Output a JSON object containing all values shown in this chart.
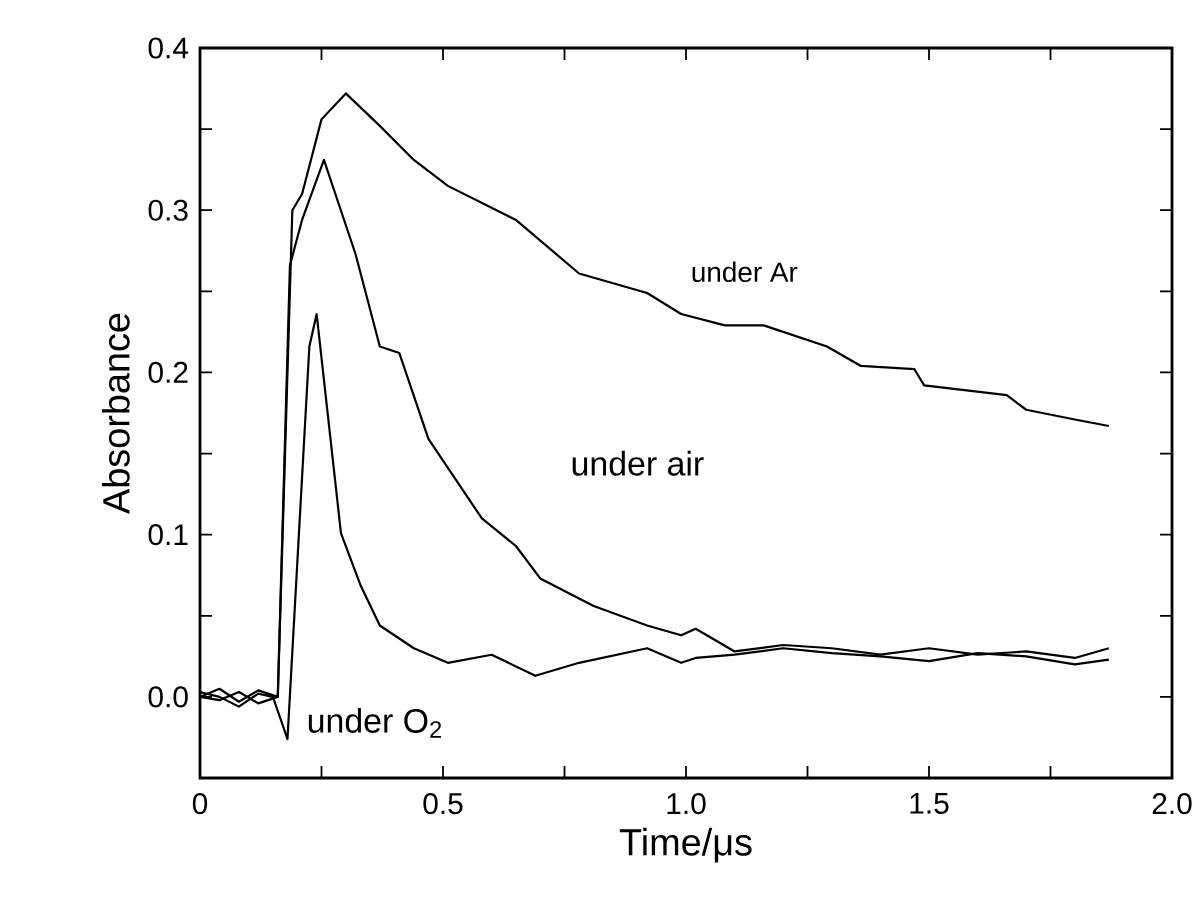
{
  "chart_data": {
    "type": "line",
    "xlabel": "Time/μs",
    "ylabel": "Absorbance",
    "xlim": [
      0,
      2.0
    ],
    "ylim": [
      -0.05,
      0.4
    ],
    "xticks": [
      {
        "value": 0,
        "label": "0"
      },
      {
        "value": 0.25,
        "label": null
      },
      {
        "value": 0.5,
        "label": "0.5"
      },
      {
        "value": 0.75,
        "label": null
      },
      {
        "value": 1.0,
        "label": "1.0"
      },
      {
        "value": 1.25,
        "label": null
      },
      {
        "value": 1.5,
        "label": "1.5"
      },
      {
        "value": 1.75,
        "label": null
      },
      {
        "value": 2.0,
        "label": "2.0"
      }
    ],
    "yticks": [
      {
        "value": 0,
        "label": "0.0"
      },
      {
        "value": 0.05,
        "label": null
      },
      {
        "value": 0.1,
        "label": "0.1"
      },
      {
        "value": 0.15,
        "label": null
      },
      {
        "value": 0.2,
        "label": "0.2"
      },
      {
        "value": 0.25,
        "label": null
      },
      {
        "value": 0.3,
        "label": "0.3"
      },
      {
        "value": 0.35,
        "label": null
      },
      {
        "value": 0.4,
        "label": "0.4"
      }
    ],
    "grid": false,
    "legend": false,
    "marker": "none",
    "line_style": "solid",
    "series": [
      {
        "name": "under Ar",
        "color": "#000000",
        "x": [
          0,
          0.04,
          0.08,
          0.12,
          0.16,
          0.19,
          0.21,
          0.25,
          0.3,
          0.37,
          0.44,
          0.51,
          0.65,
          0.78,
          0.92,
          0.99,
          1.08,
          1.16,
          1.29,
          1.36,
          1.47,
          1.49,
          1.66,
          1.7,
          1.8,
          1.87
        ],
        "values": [
          0.0,
          0.005,
          -0.003,
          0.004,
          0.0,
          0.3,
          0.31,
          0.356,
          0.372,
          0.352,
          0.331,
          0.315,
          0.294,
          0.261,
          0.249,
          0.236,
          0.229,
          0.229,
          0.216,
          0.204,
          0.202,
          0.192,
          0.186,
          0.177,
          0.171,
          0.167
        ]
      },
      {
        "name": "under air",
        "color": "#000000",
        "x": [
          0,
          0.04,
          0.08,
          0.12,
          0.16,
          0.185,
          0.21,
          0.255,
          0.32,
          0.37,
          0.41,
          0.47,
          0.58,
          0.65,
          0.7,
          0.81,
          0.92,
          0.99,
          1.02,
          1.1,
          1.2,
          1.3,
          1.4,
          1.5,
          1.6,
          1.7,
          1.8,
          1.87
        ],
        "values": [
          0.0,
          -0.002,
          0.003,
          -0.004,
          0.0,
          0.266,
          0.294,
          0.331,
          0.273,
          0.216,
          0.212,
          0.159,
          0.11,
          0.093,
          0.073,
          0.056,
          0.044,
          0.038,
          0.042,
          0.028,
          0.032,
          0.03,
          0.026,
          0.03,
          0.026,
          0.028,
          0.024,
          0.03
        ]
      },
      {
        "name": "under O$_{2}$",
        "color": "#000000",
        "x": [
          0,
          0.04,
          0.08,
          0.12,
          0.15,
          0.18,
          0.225,
          0.24,
          0.29,
          0.33,
          0.37,
          0.44,
          0.51,
          0.6,
          0.69,
          0.78,
          0.92,
          0.99,
          1.02,
          1.1,
          1.2,
          1.3,
          1.4,
          1.5,
          1.6,
          1.7,
          1.8,
          1.87
        ],
        "values": [
          0.003,
          0.0,
          -0.006,
          0.002,
          0.0,
          -0.026,
          0.216,
          0.236,
          0.101,
          0.069,
          0.044,
          0.03,
          0.021,
          0.026,
          0.013,
          0.021,
          0.03,
          0.021,
          0.024,
          0.026,
          0.03,
          0.027,
          0.025,
          0.022,
          0.027,
          0.025,
          0.02,
          0.023
        ]
      }
    ]
  }
}
